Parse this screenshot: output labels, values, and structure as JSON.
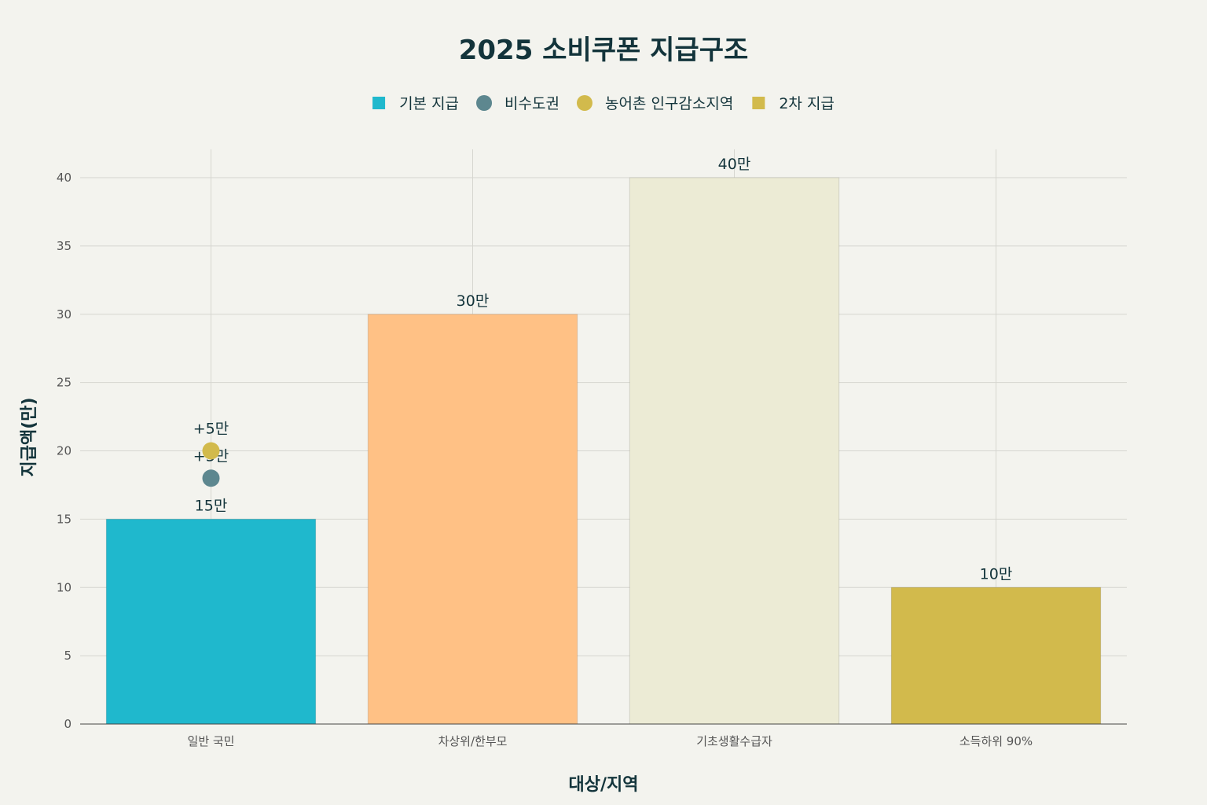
{
  "chart_data": {
    "type": "bar",
    "title": "2025 소비쿠폰 지급구조",
    "xlabel": "대상/지역",
    "ylabel": "지급액(만)",
    "ylim": [
      0,
      40
    ],
    "yticks": [
      0,
      5,
      10,
      15,
      20,
      25,
      30,
      35,
      40
    ],
    "grid": true,
    "legend_position": "top-center",
    "categories": [
      "일반 국민",
      "차상위/한부모",
      "기초생활수급자",
      "소득하위 90%"
    ],
    "legend": [
      {
        "label": "기본 지급",
        "marker": "square",
        "color": "#1fb8cd"
      },
      {
        "label": "비수도권",
        "marker": "circle",
        "color": "#5d878f"
      },
      {
        "label": "농어촌 인구감소지역",
        "marker": "circle",
        "color": "#d2ba4c"
      },
      {
        "label": "2차 지급",
        "marker": "square",
        "color": "#d2ba4c"
      }
    ],
    "bars": [
      {
        "category": "일반 국민",
        "value": 15,
        "label": "15만",
        "color": "#1fb8cd"
      },
      {
        "category": "차상위/한부모",
        "value": 30,
        "label": "30만",
        "color": "#ffc185"
      },
      {
        "category": "기초생활수급자",
        "value": 40,
        "label": "40만",
        "color": "#eceBd5"
      },
      {
        "category": "소득하위 90%",
        "value": 10,
        "label": "10만",
        "color": "#d2ba4c"
      }
    ],
    "points": [
      {
        "series": "비수도권",
        "category": "일반 국민",
        "value": 18,
        "label": "+3만",
        "color": "#5d878f"
      },
      {
        "series": "농어촌 인구감소지역",
        "category": "일반 국민",
        "value": 20,
        "label": "+5만",
        "color": "#d2ba4c"
      }
    ]
  }
}
